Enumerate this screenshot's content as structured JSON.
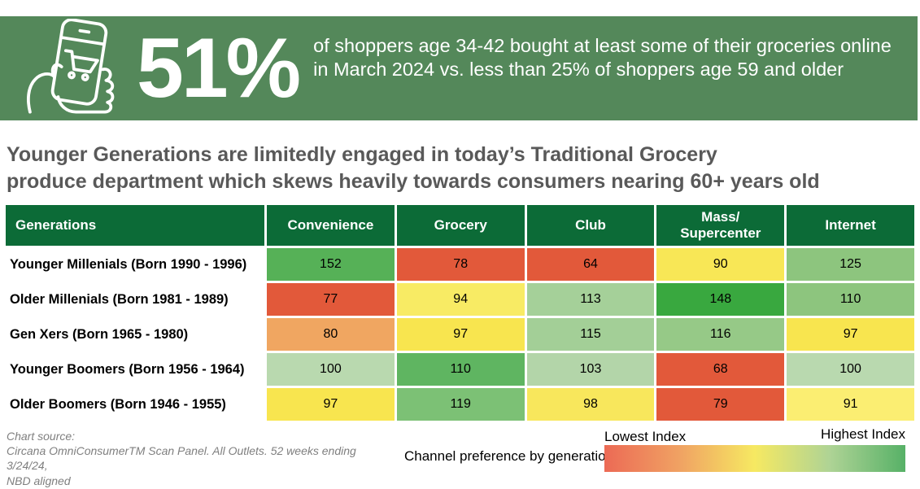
{
  "banner": {
    "stat": "51%",
    "description": "of shoppers age 34-42 bought at least some of their groceries online\nin March 2024 vs. less than 25% of shoppers age 59 and older",
    "bg_color": "#54885A",
    "icon": "phone-shopping-cart-hand-icon"
  },
  "headline": "Younger Generations are limitedly engaged in today’s Traditional Grocery\nproduce department which skews heavily towards consumers nearing 60+ years old",
  "chart_data": {
    "type": "heatmap",
    "title": "Younger Generations are limitedly engaged in today’s Traditional Grocery produce department which skews heavily towards consumers nearing 60+ years old",
    "row_header": "Generations",
    "columns": [
      "Convenience",
      "Grocery",
      "Club",
      "Mass/\nSupercenter",
      "Internet"
    ],
    "rows": [
      {
        "label": "Younger Millenials (Born 1990 - 1996)",
        "values": [
          152,
          78,
          64,
          90,
          125
        ],
        "colors": [
          "#56B157",
          "#E2593A",
          "#E2593A",
          "#F8E756",
          "#8DC57E"
        ]
      },
      {
        "label": "Older Millenials (Born 1981 - 1989)",
        "values": [
          77,
          94,
          113,
          148,
          110
        ],
        "colors": [
          "#E2593A",
          "#F8EB64",
          "#A5D099",
          "#39A83F",
          "#8DC57E"
        ]
      },
      {
        "label": "Gen Xers (Born 1965 - 1980)",
        "values": [
          80,
          97,
          115,
          116,
          97
        ],
        "colors": [
          "#F0A661",
          "#F8E54F",
          "#A3CF97",
          "#96C987",
          "#F8E54F"
        ]
      },
      {
        "label": "Younger Boomers (Born 1956 - 1964)",
        "values": [
          100,
          110,
          103,
          68,
          100
        ],
        "colors": [
          "#B9D9AF",
          "#5FB561",
          "#B3D5A9",
          "#E2593A",
          "#B9D9AF"
        ]
      },
      {
        "label": "Older Boomers (Born 1946 - 1955)",
        "values": [
          97,
          119,
          98,
          79,
          91
        ],
        "colors": [
          "#F8E54F",
          "#7CC175",
          "#F8E75C",
          "#E2593A",
          "#FBEE72"
        ]
      }
    ],
    "header_bg_color": "#0C6B37",
    "legend": {
      "low_label": "Lowest Index",
      "high_label": "Highest Index",
      "gradient_stops": [
        "#EC6A55",
        "#F0A263",
        "#F6E962",
        "#AED395",
        "#57B167"
      ]
    },
    "legend_position": "bottom-right"
  },
  "footer": {
    "source": "Chart source:\nCircana OmniConsumerTM Scan Panel. All Outlets. 52 weeks ending 3/24/24,\nNBD aligned",
    "legend_caption": "Channel preference by generation >"
  }
}
